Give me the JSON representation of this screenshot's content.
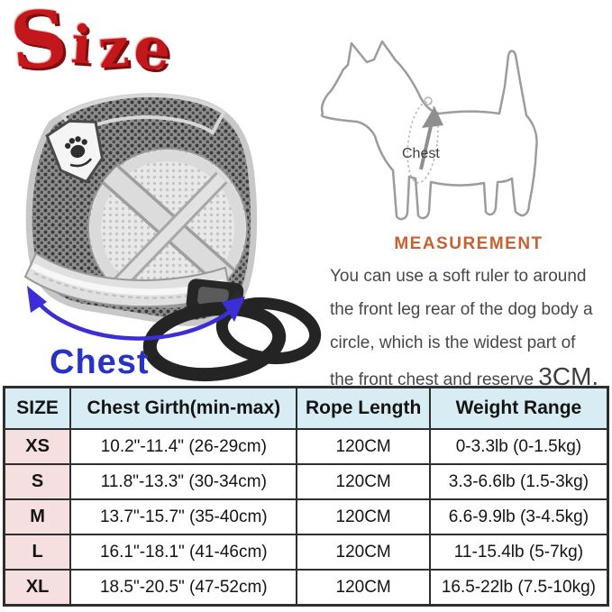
{
  "title": {
    "text": "Size"
  },
  "harness": {
    "chest_label": "Chest"
  },
  "dog_diagram": {
    "chest_label": "Chest"
  },
  "measurement": {
    "heading": "MEASUREMENT",
    "body": "You can use a soft ruler to around\nthe front leg rear of the dog body a\ncircle, which is the widest part of\nthe front chest and reserve ",
    "highlight": "3CM."
  },
  "size_table": {
    "headers": {
      "size": "SIZE",
      "girth": "Chest Girth(min-max)",
      "rope": "Rope Length",
      "weight": "Weight Range"
    },
    "rows": [
      {
        "size": "XS",
        "girth": "10.2\"-11.4\" (26-29cm)",
        "rope": "120CM",
        "weight": "0-3.3lb (0-1.5kg)"
      },
      {
        "size": "S",
        "girth": "11.8\"-13.3\" (30-34cm)",
        "rope": "120CM",
        "weight": "3.3-6.6lb (1.5-3kg)"
      },
      {
        "size": "M",
        "girth": "13.7\"-15.7\" (35-40cm)",
        "rope": "120CM",
        "weight": "6.6-9.9lb (3-4.5kg)"
      },
      {
        "size": "L",
        "girth": "16.1\"-18.1\" (41-46cm)",
        "rope": "120CM",
        "weight": "11-15.4lb (5-7kg)"
      },
      {
        "size": "XL",
        "girth": "18.5\"-20.5\" (47-52cm)",
        "rope": "120CM",
        "weight": "16.5-22lb (7.5-10kg)"
      }
    ]
  },
  "colors": {
    "title_red": "#c2181b",
    "measurement_orange": "#c9602f",
    "chest_label_blue": "#2633c6",
    "measuring_arrow_blue": "#3b2ed6",
    "table_header_bg": "#d8ecf3",
    "table_size_col_bg": "#f6dfdf",
    "table_border": "#2e2e2e"
  }
}
